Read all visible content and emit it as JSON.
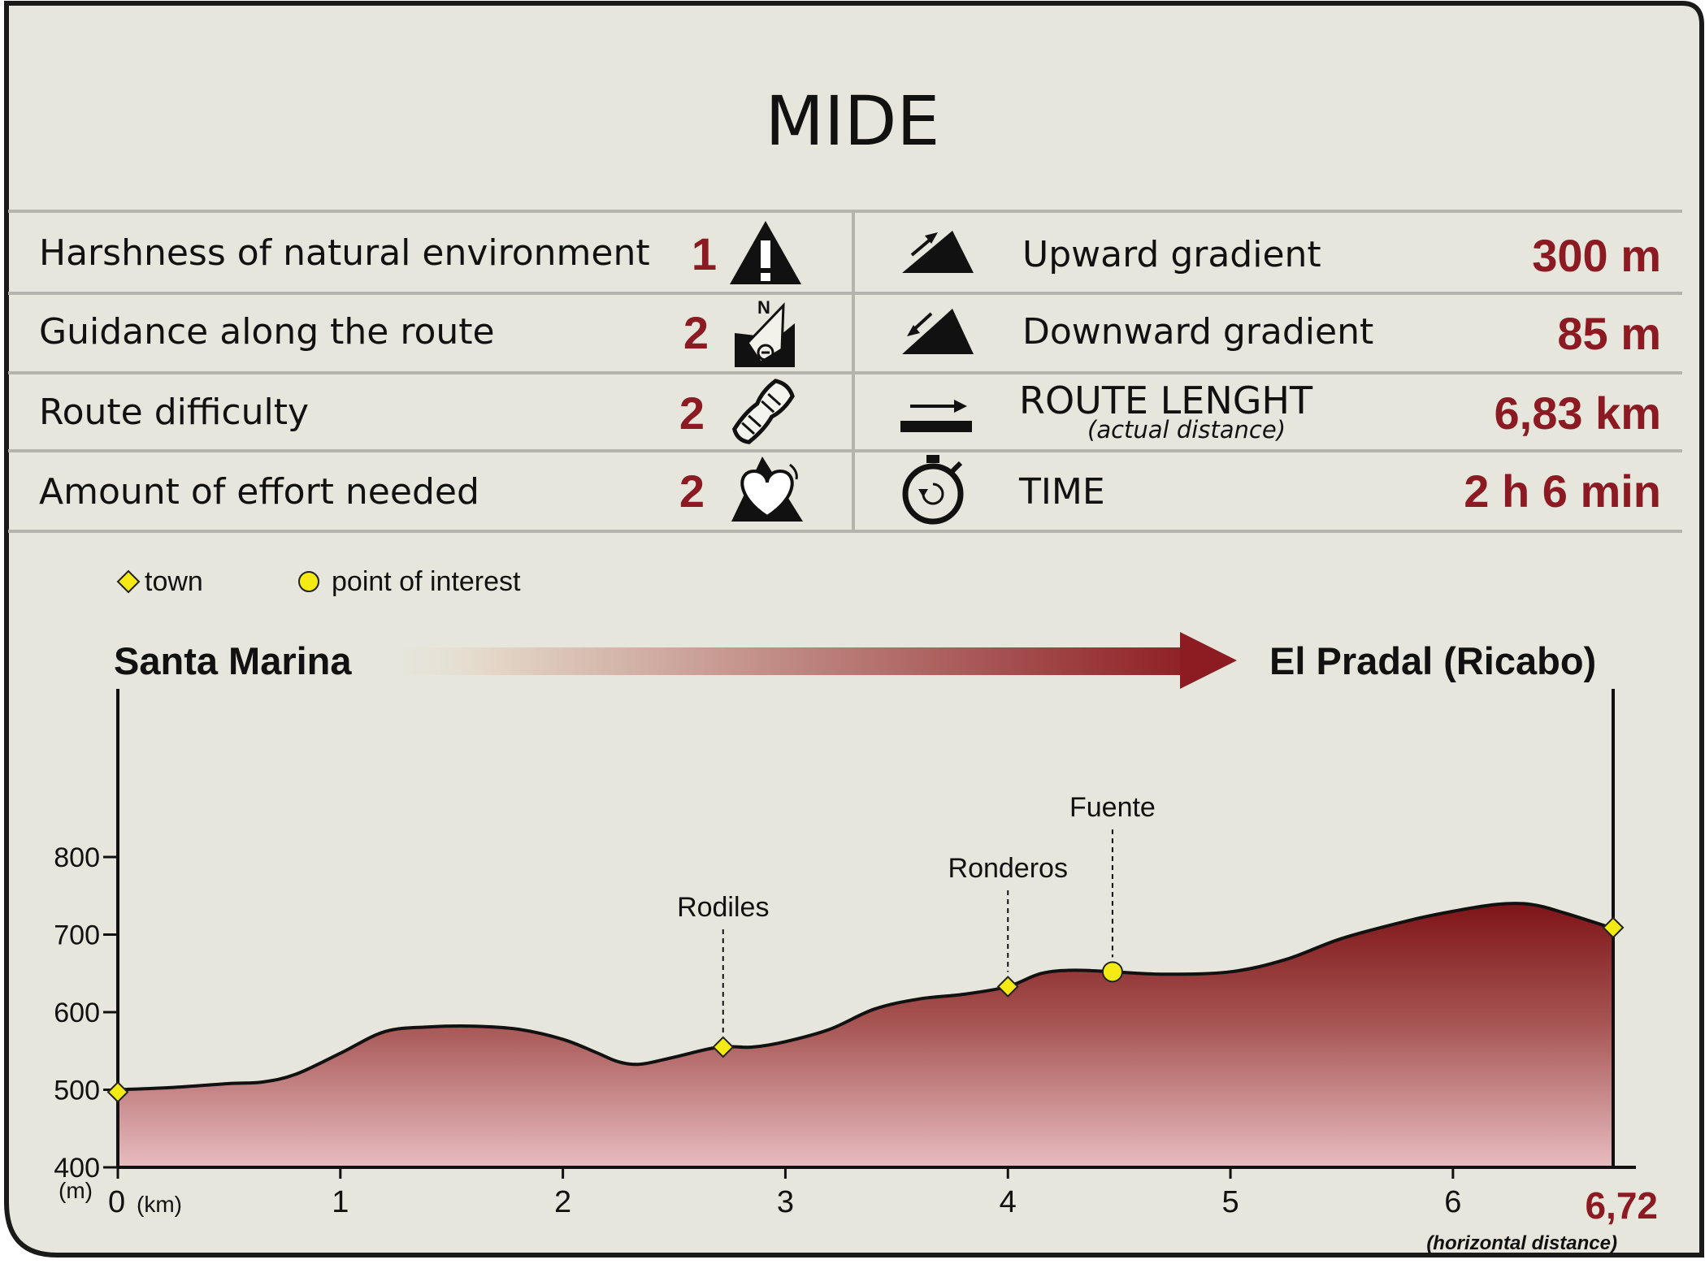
{
  "title": "MIDE",
  "accent_color": "#8b1a23",
  "panel_color": "#e6e6dc",
  "mide_left": [
    {
      "label": "Harshness of natural environment",
      "value": "1",
      "icon": "warning-mountain-icon"
    },
    {
      "label": "Guidance along the route",
      "value": "2",
      "icon": "compass-map-icon"
    },
    {
      "label": "Route difficulty",
      "value": "2",
      "icon": "boot-sole-icon"
    },
    {
      "label": "Amount of effort needed",
      "value": "2",
      "icon": "heart-mountain-icon"
    }
  ],
  "mide_right": [
    {
      "label": "Upward gradient",
      "sublabel": "",
      "value": "300 m",
      "icon": "upward-slope-icon"
    },
    {
      "label": "Downward gradient",
      "sublabel": "",
      "value": "85 m",
      "icon": "downward-slope-icon"
    },
    {
      "label": "ROUTE LENGHT",
      "sublabel": "(actual distance)",
      "value": "6,83 km",
      "icon": "distance-arrow-icon"
    },
    {
      "label": "TIME",
      "sublabel": "",
      "value": "2 h 6 min",
      "icon": "stopwatch-icon"
    }
  ],
  "legend": {
    "town": "town",
    "poi": "point of interest"
  },
  "route": {
    "start": "Santa Marina",
    "end": "El Pradal (Ricabo)"
  },
  "chart_data": {
    "type": "area",
    "title": "",
    "xlabel": "(km)",
    "ylabel": "(m)",
    "xlim": [
      0,
      6.72
    ],
    "ylim": [
      400,
      900
    ],
    "x_ticks": [
      0,
      1,
      2,
      3,
      4,
      5,
      6
    ],
    "x_end_label": "6,72",
    "x_end_note": "(horizontal distance)",
    "y_ticks": [
      400,
      500,
      600,
      700,
      800
    ],
    "grid": false,
    "legend_position": "top-left",
    "profile": {
      "x": [
        0,
        0.25,
        0.5,
        0.65,
        0.8,
        1.0,
        1.2,
        1.4,
        1.6,
        1.8,
        2.0,
        2.15,
        2.25,
        2.35,
        2.5,
        2.7,
        2.85,
        3.0,
        3.2,
        3.4,
        3.6,
        3.8,
        4.0,
        4.15,
        4.3,
        4.47,
        4.7,
        5.0,
        5.25,
        5.5,
        5.8,
        6.0,
        6.2,
        6.35,
        6.5,
        6.72
      ],
      "y": [
        500,
        503,
        508,
        510,
        520,
        547,
        575,
        581,
        582,
        578,
        565,
        548,
        536,
        533,
        542,
        555,
        555,
        562,
        578,
        604,
        617,
        623,
        633,
        650,
        654,
        652,
        649,
        652,
        668,
        695,
        718,
        730,
        739,
        739,
        728,
        708
      ]
    },
    "markers": [
      {
        "name": "Santa Marina",
        "type": "town",
        "x": 0,
        "y": 497,
        "label": ""
      },
      {
        "name": "Rodiles",
        "type": "town",
        "x": 2.72,
        "y": 555,
        "label": "Rodiles"
      },
      {
        "name": "Ronderos",
        "type": "town",
        "x": 4.0,
        "y": 633,
        "label": "Ronderos"
      },
      {
        "name": "Fuente",
        "type": "poi",
        "x": 4.47,
        "y": 652,
        "label": "Fuente"
      },
      {
        "name": "El Pradal (Ricabo)",
        "type": "town",
        "x": 6.72,
        "y": 709,
        "label": ""
      }
    ]
  }
}
